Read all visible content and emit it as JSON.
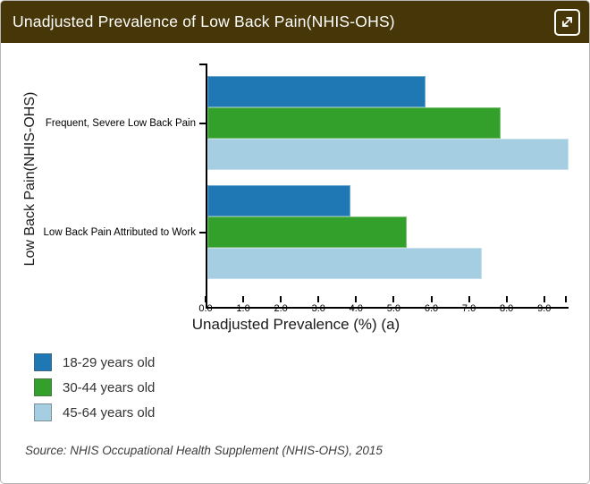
{
  "header": {
    "title": "Unadjusted Prevalence of Low Back Pain(NHIS-OHS)",
    "background_color": "#473608",
    "expand_icon": "diagonal-expand-arrows"
  },
  "chart_data": {
    "type": "bar",
    "orientation": "horizontal",
    "title": "Unadjusted Prevalence of Low Back Pain(NHIS-OHS)",
    "categories": [
      "Frequent, Severe Low Back Pain",
      "Low Back Pain Attributed to Work"
    ],
    "series": [
      {
        "name": "18-29 years old",
        "color": "#1f78b4",
        "values": [
          5.8,
          3.8
        ]
      },
      {
        "name": "30-44 years old",
        "color": "#33a02c",
        "values": [
          7.8,
          5.3
        ]
      },
      {
        "name": "45-64 years old",
        "color": "#a6cee3",
        "values": [
          9.6,
          7.3
        ]
      }
    ],
    "xlabel": "Unadjusted Prevalence (%) (a)",
    "ylabel": "Low Back Pain(NHIS-OHS)",
    "xlim": [
      0,
      9.6
    ],
    "x_tick_labels": [
      "0.0",
      "1.0",
      "2.0",
      "3.0",
      "4.0",
      "5.0",
      "6.0",
      "7.0",
      "8.0",
      "9.0"
    ],
    "x_tick_values": [
      0,
      1,
      2,
      3,
      4,
      5,
      6,
      7,
      8,
      9
    ],
    "grid": false,
    "legend_position": "bottom-left"
  },
  "footer": {
    "source": "Source: NHIS Occupational Health Supplement (NHIS-OHS), 2015"
  },
  "colors": {
    "widget_border": "#b6b6b6",
    "axis": "#000000",
    "header_text": "#ffffff"
  }
}
